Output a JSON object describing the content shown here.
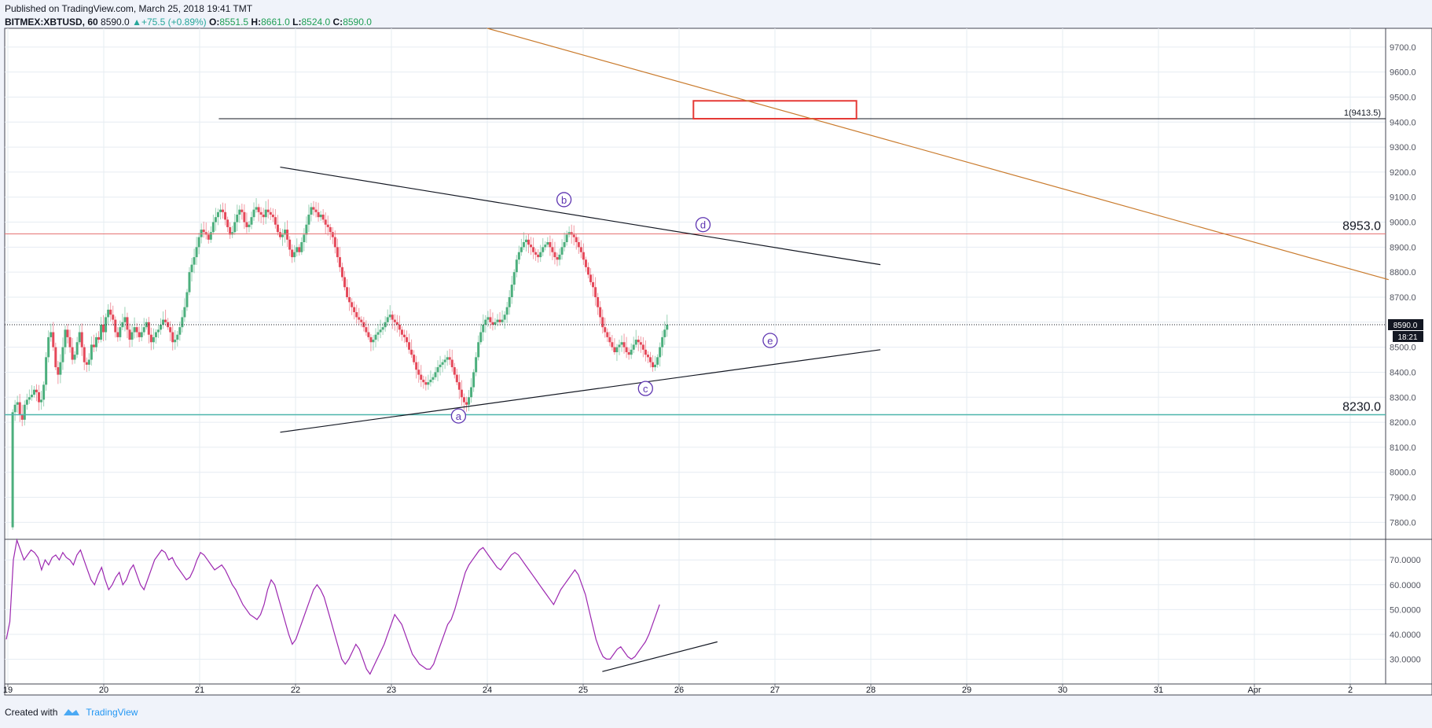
{
  "header": {
    "published": "Published on TradingView.com, March 25, 2018 19:41 TMT",
    "symbol": "BITMEX:XBTUSD, 60",
    "last": "8590.0",
    "change": "▲+75.5 (+0.89%)",
    "o_label": "O:",
    "o_value": "8551.5",
    "h_label": "H:",
    "h_value": "8661.0",
    "l_label": "L:",
    "l_value": "8524.0",
    "c_label": "C:",
    "c_value": "8590.0"
  },
  "footer": {
    "created_with": "Created with",
    "brand": "TradingView"
  },
  "colors": {
    "up": "#4caf7d",
    "down": "#e5495a",
    "rsi": "#9c27b0",
    "resistance": "#e57373",
    "support": "#4db6ac",
    "trend": "#c97a2c",
    "box": "#e53935",
    "label": "#5e35b1"
  },
  "chart_data": [
    {
      "type": "candlestick",
      "y_ticks": [
        "7800.0",
        "7900.0",
        "8000.0",
        "8100.0",
        "8200.0",
        "8300.0",
        "8400.0",
        "8500.0",
        "8600.0",
        "8700.0",
        "8800.0",
        "8900.0",
        "9000.0",
        "9100.0",
        "9200.0",
        "9300.0",
        "9400.0",
        "9500.0",
        "9600.0",
        "9700.0"
      ],
      "ylim": [
        7735,
        9775
      ],
      "x_ticks": [
        "19",
        "20",
        "21",
        "22",
        "23",
        "24",
        "25",
        "26",
        "27",
        "28",
        "29",
        "30",
        "31",
        "Apr",
        "2"
      ],
      "xlim": [
        0,
        14.4
      ],
      "price_badge": "8590.0",
      "countdown": "18:21",
      "levels": [
        {
          "name": "resistance",
          "value": 8953.0,
          "label": "8953.0"
        },
        {
          "name": "support",
          "value": 8230.0,
          "label": "8230.0"
        },
        {
          "name": "fib",
          "value": 9413.5,
          "label": "1(9413.5)",
          "from": 2.2
        },
        {
          "name": "last-price",
          "value": 8590.0
        }
      ],
      "target_box": {
        "x1": 7.15,
        "x2": 8.85,
        "y1": 9413.5,
        "y2": 9485
      },
      "trendlines": [
        {
          "name": "triangle-upper",
          "x1": 2.84,
          "y1": 9220,
          "x2": 9.1,
          "y2": 8830
        },
        {
          "name": "triangle-lower",
          "x1": 2.84,
          "y1": 8160,
          "x2": 9.1,
          "y2": 8490
        },
        {
          "name": "long-downtrend",
          "x1": 5.0,
          "y1": 9775,
          "x2": 14.4,
          "y2": 8770
        }
      ],
      "wave_labels": [
        {
          "text": "a",
          "x": 4.7,
          "y": 8225
        },
        {
          "text": "b",
          "x": 5.8,
          "y": 9090
        },
        {
          "text": "c",
          "x": 6.65,
          "y": 8335
        },
        {
          "text": "d",
          "x": 7.25,
          "y": 8990
        },
        {
          "text": "e",
          "x": 7.95,
          "y": 8527
        }
      ],
      "closes": [
        8240,
        8270,
        8280,
        8230,
        8210,
        8270,
        8290,
        8300,
        8310,
        8330,
        8320,
        8280,
        8290,
        8350,
        8460,
        8540,
        8560,
        8500,
        8420,
        8390,
        8440,
        8500,
        8570,
        8540,
        8500,
        8450,
        8470,
        8520,
        8560,
        8500,
        8440,
        8430,
        8450,
        8510,
        8500,
        8540,
        8530,
        8590,
        8560,
        8620,
        8650,
        8630,
        8610,
        8560,
        8540,
        8580,
        8600,
        8620,
        8570,
        8530,
        8560,
        8580,
        8560,
        8540,
        8560,
        8580,
        8600,
        8550,
        8520,
        8540,
        8560,
        8570,
        8590,
        8610,
        8600,
        8580,
        8560,
        8520,
        8530,
        8550,
        8580,
        8620,
        8660,
        8720,
        8800,
        8830,
        8860,
        8900,
        8940,
        8970,
        8960,
        8950,
        8930,
        8960,
        9000,
        9020,
        9040,
        9050,
        9040,
        9010,
        8980,
        8950,
        8960,
        9000,
        9030,
        9050,
        9040,
        9000,
        8980,
        8990,
        9020,
        9050,
        9060,
        9040,
        9030,
        9020,
        9050,
        9040,
        9030,
        9020,
        8990,
        8960,
        8940,
        8950,
        8970,
        8930,
        8890,
        8860,
        8880,
        8900,
        8880,
        8920,
        8950,
        8990,
        9030,
        9060,
        9050,
        9040,
        9020,
        9030,
        9010,
        8990,
        8980,
        8960,
        8940,
        8900,
        8860,
        8820,
        8780,
        8740,
        8700,
        8680,
        8660,
        8640,
        8620,
        8610,
        8600,
        8580,
        8560,
        8540,
        8520,
        8530,
        8550,
        8560,
        8570,
        8580,
        8600,
        8620,
        8630,
        8610,
        8600,
        8590,
        8570,
        8550,
        8540,
        8520,
        8490,
        8470,
        8440,
        8410,
        8390,
        8370,
        8360,
        8350,
        8360,
        8370,
        8380,
        8400,
        8420,
        8430,
        8440,
        8450,
        8460,
        8450,
        8420,
        8390,
        8360,
        8330,
        8300,
        8280,
        8270,
        8300,
        8340,
        8400,
        8460,
        8520,
        8560,
        8590,
        8610,
        8620,
        8600,
        8590,
        8600,
        8610,
        8600,
        8610,
        8630,
        8660,
        8700,
        8750,
        8800,
        8850,
        8880,
        8900,
        8920,
        8930,
        8910,
        8900,
        8880,
        8870,
        8860,
        8880,
        8900,
        8910,
        8920,
        8900,
        8880,
        8860,
        8850,
        8870,
        8900,
        8920,
        8950,
        8960,
        8950,
        8940,
        8920,
        8900,
        8880,
        8850,
        8820,
        8790,
        8760,
        8740,
        8700,
        8660,
        8620,
        8580,
        8560,
        8540,
        8520,
        8500,
        8480,
        8500,
        8510,
        8520,
        8500,
        8480,
        8470,
        8490,
        8510,
        8530,
        8520,
        8510,
        8490,
        8470,
        8460,
        8440,
        8420,
        8430,
        8460,
        8500,
        8540,
        8570,
        8590
      ],
      "xlabel": "",
      "ylabel": ""
    },
    {
      "type": "line",
      "series": [
        {
          "values": [
            38,
            45,
            70,
            78,
            74,
            70,
            72,
            74,
            73,
            71,
            66,
            70,
            68,
            71,
            72,
            70,
            73,
            71,
            70,
            68,
            72,
            74,
            70,
            66,
            62,
            60,
            64,
            67,
            62,
            58,
            60,
            63,
            65,
            60,
            62,
            66,
            68,
            64,
            60,
            58,
            62,
            66,
            70,
            72,
            74,
            73,
            70,
            71,
            68,
            66,
            64,
            62,
            63,
            66,
            70,
            73,
            72,
            70,
            68,
            66,
            67,
            68,
            66,
            63,
            60,
            58,
            55,
            52,
            50,
            48,
            47,
            46,
            48,
            52,
            58,
            62,
            60,
            55,
            50,
            45,
            40,
            36,
            38,
            42,
            46,
            50,
            54,
            58,
            60,
            58,
            55,
            50,
            45,
            40,
            35,
            30,
            28,
            30,
            33,
            36,
            34,
            30,
            26,
            24,
            27,
            30,
            33,
            36,
            40,
            44,
            48,
            46,
            44,
            40,
            36,
            32,
            30,
            28,
            27,
            26,
            26,
            28,
            32,
            36,
            40,
            44,
            46,
            50,
            55,
            60,
            65,
            68,
            70,
            72,
            74,
            75,
            73,
            71,
            69,
            67,
            66,
            68,
            70,
            72,
            73,
            72,
            70,
            68,
            66,
            64,
            62,
            60,
            58,
            56,
            54,
            52,
            55,
            58,
            60,
            62,
            64,
            66,
            64,
            60,
            56,
            50,
            44,
            38,
            34,
            31,
            30,
            30,
            32,
            34,
            35,
            33,
            31,
            30,
            31,
            33,
            35,
            37,
            40,
            44,
            48,
            52
          ]
        }
      ],
      "y_ticks": [
        "30.0000",
        "40.0000",
        "50.0000",
        "60.0000",
        "70.0000"
      ],
      "ylim": [
        20,
        78
      ],
      "divergence_line": {
        "x1": 6.2,
        "y1": 25,
        "x2": 7.4,
        "y2": 37
      }
    }
  ]
}
